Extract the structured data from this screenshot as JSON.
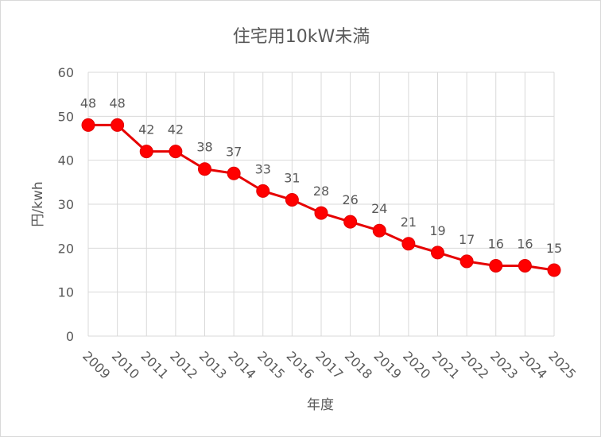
{
  "chart_data": {
    "type": "line",
    "title": "住宅用10kW未満",
    "xlabel": "年度",
    "ylabel": "円/kwh",
    "categories": [
      "2009",
      "2010",
      "2011",
      "2012",
      "2013",
      "2014",
      "2015",
      "2016",
      "2017",
      "2018",
      "2019",
      "2020",
      "2021",
      "2022",
      "2023",
      "2024",
      "2025"
    ],
    "series": [
      {
        "values": [
          48,
          48,
          42,
          42,
          38,
          37,
          33,
          31,
          28,
          26,
          24,
          21,
          19,
          17,
          16,
          16,
          15
        ]
      }
    ],
    "ylim": [
      0,
      60
    ],
    "yticks": [
      "0",
      "10",
      "20",
      "30",
      "40",
      "50",
      "60"
    ],
    "grid": true,
    "legend": "none",
    "data_labels": true,
    "colors": {
      "line": "#e60000",
      "marker": "#ff0000",
      "grid": "#d9d9d9",
      "text": "#595959"
    }
  }
}
